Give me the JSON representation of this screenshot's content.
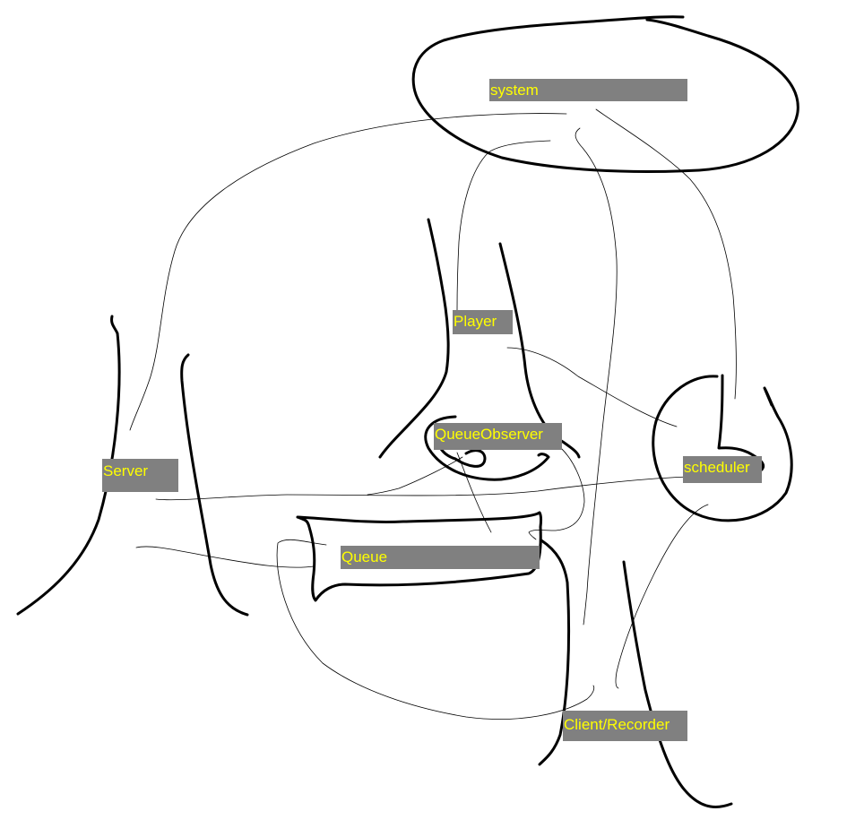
{
  "diagram": {
    "nodes": {
      "system": "system",
      "player": "Player",
      "queue_observer": "QueueObserver",
      "server": "Server",
      "scheduler": "scheduler",
      "queue": "Queue",
      "client_recorder": "Client/Recorder"
    }
  },
  "colors": {
    "label_background": "#808080",
    "label_text": "#ffff00",
    "ink": "#000000",
    "background": "#ffffff"
  }
}
